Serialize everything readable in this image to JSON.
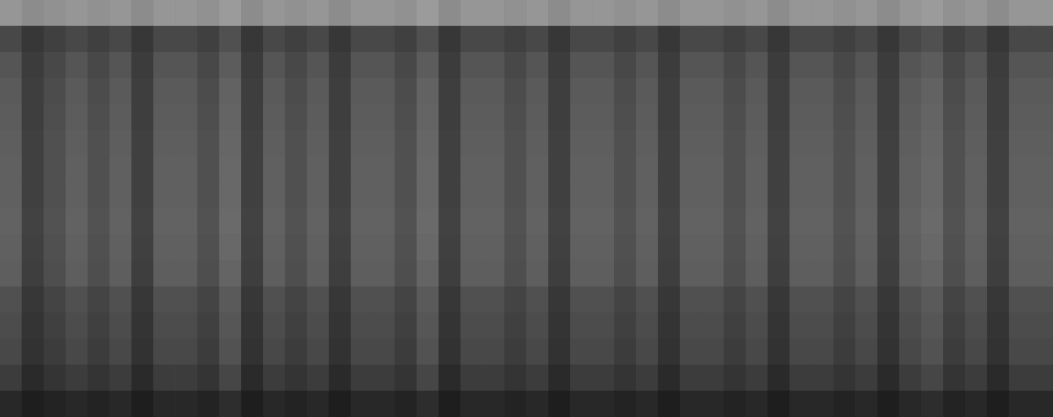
{
  "chart_data": {
    "type": "heatmap",
    "tick_labels": false,
    "color_range": [
      0,
      255
    ],
    "cells": [
      [
        150,
        140,
        145,
        150,
        145,
        150,
        140,
        150,
        150,
        145,
        155,
        140,
        150,
        145,
        150,
        140,
        150,
        150,
        145,
        155,
        140,
        150,
        150,
        145,
        150,
        140,
        150,
        150,
        145,
        150,
        140,
        150,
        150,
        145,
        150,
        140,
        150,
        150,
        145,
        150,
        140,
        150,
        155,
        145,
        150,
        140,
        150,
        150
      ],
      [
        72,
        55,
        64,
        72,
        64,
        72,
        55,
        72,
        72,
        64,
        80,
        55,
        72,
        64,
        72,
        55,
        72,
        72,
        64,
        80,
        55,
        72,
        72,
        64,
        72,
        55,
        72,
        72,
        64,
        72,
        55,
        72,
        72,
        64,
        72,
        55,
        72,
        72,
        64,
        72,
        55,
        72,
        80,
        64,
        72,
        55,
        72,
        72
      ],
      [
        85,
        60,
        72,
        85,
        72,
        85,
        60,
        85,
        85,
        72,
        92,
        60,
        85,
        72,
        85,
        60,
        85,
        85,
        72,
        92,
        60,
        85,
        85,
        72,
        85,
        60,
        85,
        85,
        72,
        85,
        60,
        85,
        85,
        72,
        85,
        60,
        85,
        85,
        72,
        85,
        60,
        85,
        92,
        72,
        85,
        60,
        85,
        85
      ],
      [
        90,
        62,
        76,
        90,
        76,
        90,
        62,
        90,
        90,
        76,
        98,
        62,
        90,
        76,
        90,
        62,
        90,
        90,
        76,
        98,
        62,
        90,
        90,
        76,
        90,
        62,
        90,
        90,
        76,
        90,
        62,
        90,
        90,
        76,
        90,
        62,
        90,
        90,
        76,
        90,
        62,
        90,
        98,
        76,
        90,
        62,
        90,
        90
      ],
      [
        92,
        62,
        78,
        92,
        78,
        92,
        62,
        92,
        92,
        78,
        100,
        62,
        92,
        78,
        92,
        62,
        92,
        92,
        78,
        100,
        62,
        92,
        92,
        78,
        92,
        62,
        92,
        92,
        78,
        92,
        62,
        92,
        92,
        78,
        92,
        62,
        92,
        92,
        78,
        92,
        62,
        92,
        100,
        78,
        92,
        62,
        92,
        92
      ],
      [
        94,
        64,
        80,
        94,
        80,
        94,
        64,
        94,
        94,
        80,
        102,
        64,
        94,
        80,
        94,
        64,
        94,
        94,
        80,
        102,
        64,
        94,
        94,
        80,
        94,
        64,
        94,
        94,
        80,
        94,
        64,
        94,
        94,
        80,
        94,
        64,
        94,
        94,
        80,
        94,
        64,
        94,
        102,
        80,
        94,
        64,
        94,
        94
      ],
      [
        96,
        64,
        80,
        96,
        80,
        96,
        64,
        96,
        96,
        80,
        104,
        64,
        96,
        80,
        96,
        64,
        96,
        96,
        80,
        104,
        64,
        96,
        96,
        80,
        96,
        64,
        96,
        96,
        80,
        96,
        64,
        96,
        96,
        80,
        96,
        64,
        96,
        96,
        80,
        96,
        64,
        96,
        104,
        80,
        96,
        64,
        96,
        96
      ],
      [
        96,
        64,
        80,
        96,
        80,
        96,
        64,
        96,
        96,
        80,
        104,
        64,
        96,
        80,
        96,
        64,
        96,
        96,
        80,
        104,
        64,
        96,
        96,
        80,
        96,
        64,
        96,
        96,
        80,
        96,
        64,
        96,
        96,
        80,
        96,
        64,
        96,
        96,
        80,
        96,
        64,
        96,
        104,
        80,
        96,
        64,
        96,
        96
      ],
      [
        98,
        66,
        82,
        98,
        82,
        98,
        66,
        98,
        98,
        82,
        106,
        66,
        98,
        82,
        98,
        66,
        98,
        98,
        82,
        106,
        66,
        98,
        98,
        82,
        98,
        66,
        98,
        98,
        82,
        98,
        66,
        98,
        98,
        82,
        98,
        66,
        98,
        98,
        82,
        98,
        66,
        98,
        106,
        82,
        98,
        66,
        98,
        98
      ],
      [
        96,
        64,
        80,
        96,
        80,
        96,
        64,
        96,
        96,
        80,
        104,
        64,
        96,
        80,
        96,
        64,
        96,
        96,
        80,
        104,
        64,
        96,
        96,
        80,
        96,
        64,
        96,
        96,
        80,
        96,
        64,
        96,
        96,
        80,
        96,
        64,
        96,
        96,
        80,
        96,
        64,
        96,
        104,
        80,
        96,
        64,
        96,
        96
      ],
      [
        94,
        62,
        78,
        94,
        78,
        94,
        62,
        94,
        94,
        78,
        100,
        62,
        94,
        78,
        94,
        62,
        94,
        94,
        78,
        100,
        62,
        94,
        94,
        78,
        94,
        62,
        94,
        94,
        78,
        94,
        62,
        94,
        94,
        78,
        94,
        62,
        94,
        94,
        78,
        94,
        62,
        94,
        100,
        78,
        94,
        62,
        94,
        94
      ],
      [
        80,
        55,
        68,
        80,
        68,
        80,
        55,
        80,
        80,
        68,
        90,
        55,
        80,
        68,
        80,
        55,
        80,
        80,
        68,
        90,
        55,
        80,
        80,
        68,
        80,
        55,
        80,
        80,
        68,
        80,
        55,
        80,
        80,
        68,
        80,
        55,
        80,
        80,
        68,
        80,
        55,
        80,
        90,
        68,
        80,
        55,
        80,
        80
      ],
      [
        76,
        52,
        64,
        76,
        64,
        76,
        52,
        76,
        76,
        64,
        86,
        52,
        76,
        64,
        76,
        52,
        76,
        76,
        64,
        86,
        52,
        76,
        76,
        64,
        76,
        52,
        76,
        76,
        64,
        76,
        52,
        76,
        76,
        64,
        76,
        52,
        76,
        76,
        64,
        76,
        52,
        76,
        86,
        64,
        76,
        52,
        76,
        76
      ],
      [
        72,
        50,
        60,
        72,
        60,
        72,
        50,
        72,
        72,
        60,
        82,
        50,
        72,
        60,
        72,
        50,
        72,
        72,
        60,
        82,
        50,
        72,
        72,
        60,
        72,
        50,
        72,
        72,
        60,
        72,
        50,
        72,
        72,
        60,
        72,
        50,
        72,
        72,
        60,
        72,
        50,
        72,
        82,
        60,
        72,
        50,
        72,
        72
      ],
      [
        60,
        42,
        52,
        60,
        52,
        60,
        42,
        60,
        60,
        52,
        70,
        42,
        60,
        52,
        60,
        42,
        60,
        60,
        52,
        70,
        42,
        60,
        60,
        52,
        60,
        42,
        60,
        60,
        52,
        60,
        42,
        60,
        60,
        52,
        60,
        42,
        60,
        60,
        52,
        60,
        42,
        60,
        70,
        52,
        60,
        42,
        60,
        60
      ],
      [
        40,
        30,
        35,
        40,
        35,
        40,
        30,
        40,
        40,
        35,
        45,
        30,
        40,
        35,
        40,
        30,
        40,
        40,
        35,
        45,
        30,
        40,
        40,
        35,
        40,
        30,
        40,
        40,
        35,
        40,
        30,
        40,
        40,
        35,
        40,
        30,
        40,
        40,
        35,
        40,
        30,
        40,
        45,
        35,
        40,
        30,
        40,
        40
      ]
    ]
  }
}
